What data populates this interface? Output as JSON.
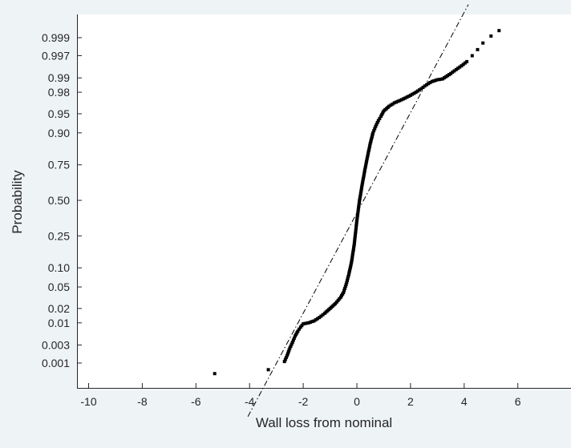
{
  "chart_data": {
    "type": "scatter",
    "title": "",
    "xlabel": "Wall loss from nominal",
    "ylabel": "Probability",
    "xlim": [
      -10.5,
      8
    ],
    "x_ticks": [
      -10,
      -8,
      -6,
      -4,
      -2,
      0,
      2,
      4,
      6
    ],
    "y_scale": "normal-probability",
    "y_ticks": [
      0.001,
      0.003,
      0.01,
      0.02,
      0.05,
      0.1,
      0.25,
      0.5,
      0.75,
      0.9,
      0.95,
      0.98,
      0.99,
      0.997,
      0.999
    ],
    "y_tick_labels": [
      "0.001",
      "0.003",
      "0.01",
      "0.02",
      "0.05",
      "0.10",
      "0.25",
      "0.50",
      "0.75",
      "0.90",
      "0.95",
      "0.98",
      "0.99",
      "0.997",
      "0.999"
    ],
    "grid": false,
    "legend": "none",
    "marker_color": "#000000",
    "series": [
      {
        "x": [
          -5.3,
          -3.3,
          -2.7,
          -2.6,
          -2.5,
          -2.4,
          -2.3,
          -2.2,
          -2.1,
          -2.0,
          -1.8,
          -1.6,
          -1.4,
          -1.2,
          -1.0,
          -0.8,
          -0.6,
          -0.5,
          -0.4,
          -0.3,
          -0.2,
          -0.1,
          0.0,
          0.1,
          0.2,
          0.3,
          0.4,
          0.5,
          0.6,
          0.7,
          0.8,
          0.9,
          1.0,
          1.2,
          1.4,
          1.6,
          1.8,
          2.0,
          2.2,
          2.4,
          2.6,
          2.8,
          3.0,
          3.2,
          3.5,
          3.7,
          3.9,
          4.1,
          4.3,
          4.5,
          4.7,
          5.0,
          5.3
        ],
        "p": [
          0.0005,
          0.00065,
          0.0011,
          0.0016,
          0.0025,
          0.0035,
          0.005,
          0.0065,
          0.008,
          0.0095,
          0.01,
          0.011,
          0.013,
          0.016,
          0.02,
          0.025,
          0.033,
          0.04,
          0.055,
          0.08,
          0.12,
          0.2,
          0.35,
          0.5,
          0.62,
          0.72,
          0.8,
          0.86,
          0.9,
          0.92,
          0.935,
          0.945,
          0.955,
          0.963,
          0.968,
          0.971,
          0.974,
          0.977,
          0.98,
          0.983,
          0.986,
          0.988,
          0.989,
          0.9895,
          0.992,
          0.9935,
          0.9947,
          0.9958,
          0.997,
          0.9979,
          0.9986,
          0.9991,
          0.99937
        ]
      }
    ],
    "reference_line": {
      "mean": 0.25,
      "sd": 1.05,
      "style": "dash-dot"
    }
  }
}
